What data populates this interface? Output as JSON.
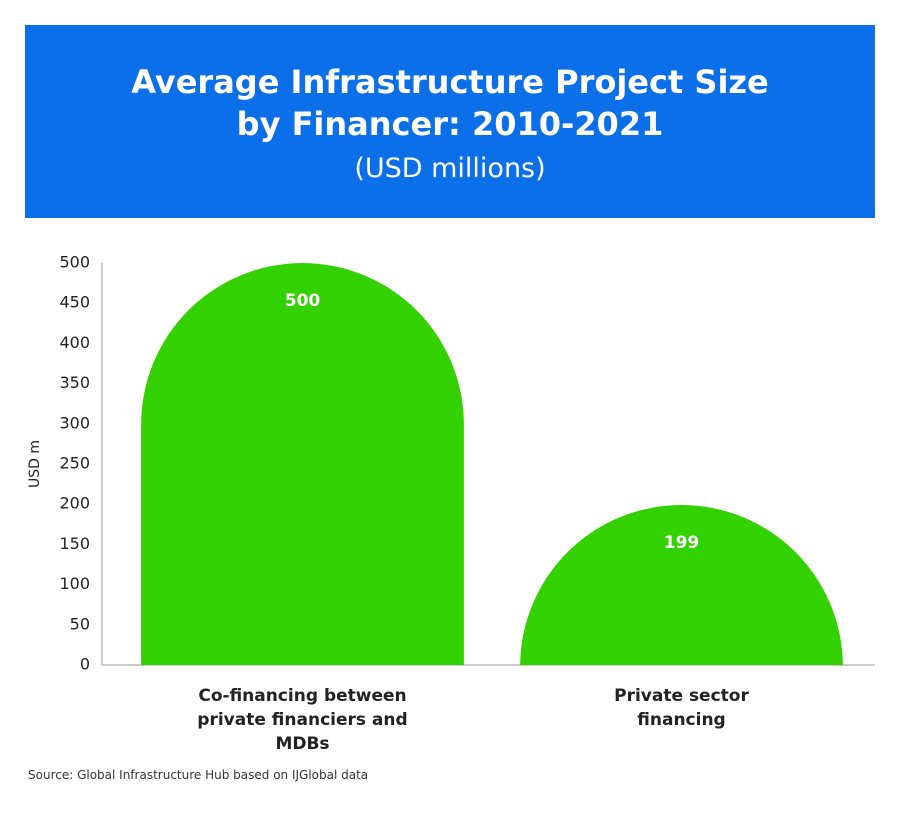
{
  "chart_data": {
    "type": "bar",
    "title": "Average Infrastructure Project Size by Financer: 2010-2021",
    "subtitle": "(USD millions)",
    "y_label": "USD m",
    "categories": [
      "Co-financing between private financiers and MDBs",
      "Private sector financing"
    ],
    "values": [
      500,
      199
    ],
    "color": "#33d100",
    "ylim": [
      0,
      500
    ],
    "yticks": [
      0,
      50,
      100,
      150,
      200,
      250,
      300,
      350,
      400,
      450,
      500
    ],
    "grid": false,
    "source": "Source: Global Infrastructure Hub based on IJGlobal data"
  }
}
